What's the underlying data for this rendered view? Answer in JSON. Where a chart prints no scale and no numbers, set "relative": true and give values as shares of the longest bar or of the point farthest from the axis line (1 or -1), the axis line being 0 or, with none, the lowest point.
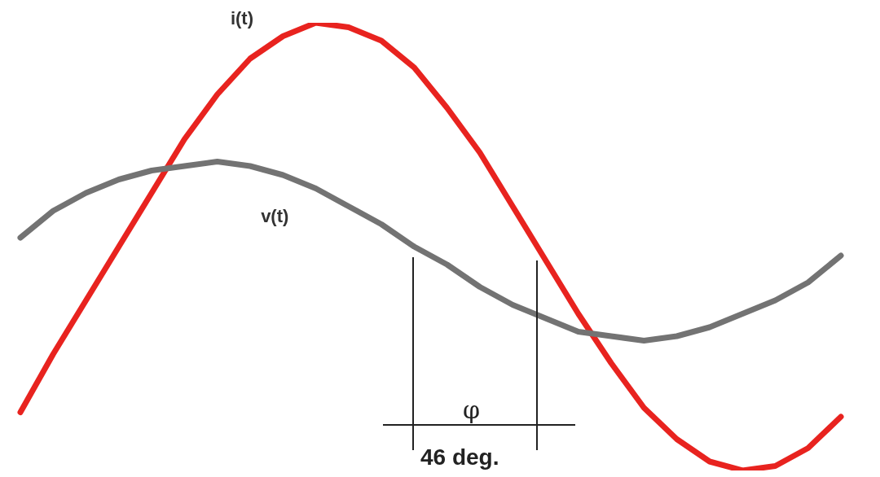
{
  "chart_data": {
    "type": "line",
    "relative": true,
    "marker": "none",
    "line_style": "solid",
    "categories": [
      null,
      null,
      null,
      null,
      null,
      null,
      null,
      null,
      null,
      null,
      null,
      null,
      null,
      null,
      null,
      null,
      null,
      null,
      null,
      null,
      null,
      null,
      null,
      null,
      null,
      null
    ],
    "series": [
      {
        "name": "i(t)",
        "color": "#e8231f",
        "values": [
          0.13,
          0.26,
          0.38,
          0.5,
          0.62,
          0.74,
          0.84,
          0.92,
          0.97,
          1.0,
          0.99,
          0.96,
          0.9,
          0.81,
          0.71,
          0.59,
          0.47,
          0.35,
          0.24,
          0.14,
          0.07,
          0.02,
          0.0,
          0.01,
          0.05,
          0.12
        ]
      },
      {
        "name": "v(t)",
        "color": "#737373",
        "values": [
          0.52,
          0.58,
          0.62,
          0.65,
          0.67,
          0.68,
          0.69,
          0.68,
          0.66,
          0.63,
          0.59,
          0.55,
          0.5,
          0.46,
          0.41,
          0.37,
          0.34,
          0.31,
          0.3,
          0.29,
          0.3,
          0.32,
          0.35,
          0.38,
          0.42,
          0.48
        ]
      }
    ],
    "annotations": [
      "φ",
      "46 deg."
    ]
  }
}
